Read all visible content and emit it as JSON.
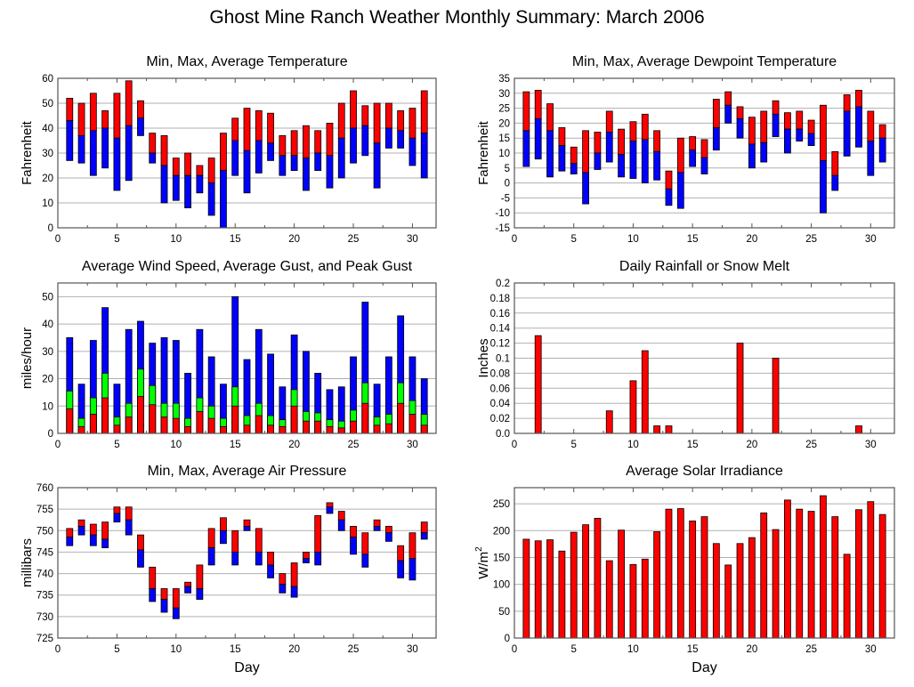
{
  "page_title": "Ghost Mine Ranch Weather Monthly Summary: March 2006",
  "colors": {
    "red": "#ff0000",
    "blue": "#0000ff",
    "green": "#00ff00",
    "grid": "#b0b0b0",
    "frame": "#555555"
  },
  "chart_data": [
    {
      "id": "temperature",
      "type": "bar",
      "subtype": "floating-range",
      "title": "Min, Max, Average Temperature",
      "xlabel": "",
      "ylabel": "Fahrenheit",
      "xlim": [
        0,
        32
      ],
      "ylim": [
        0,
        60
      ],
      "xticks": [
        0,
        5,
        10,
        15,
        20,
        25,
        30
      ],
      "yticks": [
        0,
        10,
        20,
        30,
        40,
        50,
        60
      ],
      "grid": true,
      "x": [
        1,
        2,
        3,
        4,
        5,
        6,
        7,
        8,
        9,
        10,
        11,
        12,
        13,
        14,
        15,
        16,
        17,
        18,
        19,
        20,
        21,
        22,
        23,
        24,
        25,
        26,
        27,
        28,
        29,
        30,
        31
      ],
      "series": [
        {
          "name": "Max",
          "color": "#ff0000",
          "values": [
            52,
            50,
            54,
            47,
            54,
            59,
            51,
            38,
            37,
            28,
            30,
            25,
            28,
            38,
            44,
            48,
            47,
            46,
            37,
            39,
            41,
            39,
            42,
            50,
            55,
            49,
            50,
            50,
            47,
            48,
            55
          ]
        },
        {
          "name": "Average",
          "values": [
            43,
            37,
            39,
            40,
            36,
            41,
            44,
            30,
            25,
            21,
            21,
            21,
            18,
            23,
            35,
            31,
            35,
            34,
            29,
            29,
            28,
            30,
            29,
            36,
            40,
            41,
            34,
            40,
            39,
            36,
            38
          ]
        },
        {
          "name": "Min",
          "color": "#0000ff",
          "values": [
            27,
            26,
            21,
            24,
            15,
            19,
            37,
            26,
            10,
            11,
            8,
            14,
            5,
            0,
            21,
            14,
            22,
            27,
            21,
            23,
            15,
            23,
            16,
            20,
            26,
            29,
            16,
            32,
            32,
            25,
            20
          ]
        }
      ]
    },
    {
      "id": "dewpoint",
      "type": "bar",
      "subtype": "floating-range",
      "title": "Min, Max, Average Dewpoint Temperature",
      "xlabel": "",
      "ylabel": "Fahrenheit",
      "xlim": [
        0,
        32
      ],
      "ylim": [
        -15,
        35
      ],
      "xticks": [
        0,
        5,
        10,
        15,
        20,
        25,
        30
      ],
      "yticks": [
        -15,
        -10,
        -5,
        0,
        5,
        10,
        15,
        20,
        25,
        30,
        35
      ],
      "grid": true,
      "x": [
        1,
        2,
        3,
        4,
        5,
        6,
        7,
        8,
        9,
        10,
        11,
        12,
        13,
        14,
        15,
        16,
        17,
        18,
        19,
        20,
        21,
        22,
        23,
        24,
        25,
        26,
        27,
        28,
        29,
        30,
        31
      ],
      "series": [
        {
          "name": "Max",
          "color": "#ff0000",
          "values": [
            30.5,
            31,
            26.5,
            18.5,
            12,
            17.5,
            17,
            24,
            18,
            20.5,
            23,
            17.5,
            4,
            15,
            15.5,
            14.5,
            28,
            30.5,
            25.5,
            22,
            24,
            27.5,
            23.5,
            24,
            21,
            26,
            10.5,
            29.5,
            31,
            24,
            19.5
          ]
        },
        {
          "name": "Average",
          "values": [
            17.5,
            21.5,
            17.5,
            12.5,
            6.5,
            3.5,
            10,
            17,
            9.5,
            14,
            14.5,
            10.5,
            -2,
            3.5,
            11,
            8.5,
            18.5,
            26,
            21.5,
            13,
            13.5,
            23,
            18,
            18,
            16.5,
            7.5,
            2.5,
            24,
            25.5,
            14,
            15
          ]
        },
        {
          "name": "Min",
          "color": "#0000ff",
          "values": [
            5.5,
            8,
            2,
            4,
            3,
            -7,
            4.5,
            7,
            2,
            1.5,
            0,
            1,
            -7.5,
            -8.5,
            5.5,
            3,
            11,
            20,
            15,
            5,
            7,
            15.5,
            10,
            14,
            12.5,
            -10,
            -2.5,
            9,
            12,
            2.5,
            7
          ]
        }
      ]
    },
    {
      "id": "wind",
      "type": "bar",
      "subtype": "overlaid",
      "title": "Average Wind Speed, Average Gust, and Peak Gust",
      "xlabel": "",
      "ylabel": "miles/hour",
      "xlim": [
        0,
        32
      ],
      "ylim": [
        0,
        55
      ],
      "xticks": [
        0,
        5,
        10,
        15,
        20,
        25,
        30
      ],
      "yticks": [
        0,
        10,
        20,
        30,
        40,
        50
      ],
      "grid": true,
      "x": [
        1,
        2,
        3,
        4,
        5,
        6,
        7,
        8,
        9,
        10,
        11,
        12,
        13,
        14,
        15,
        16,
        17,
        18,
        19,
        20,
        21,
        22,
        23,
        24,
        25,
        26,
        27,
        28,
        29,
        30,
        31
      ],
      "series": [
        {
          "name": "Peak Gust",
          "color": "#0000ff",
          "values": [
            35,
            18,
            34,
            46,
            18,
            38,
            41,
            33,
            35,
            34,
            22,
            38,
            28,
            18,
            50,
            27,
            38,
            29,
            17,
            36,
            30,
            22,
            16,
            17,
            28,
            48,
            18,
            28,
            43,
            28,
            20
          ]
        },
        {
          "name": "Average Gust",
          "color": "#00ff00",
          "values": [
            15.5,
            5.5,
            13,
            22,
            6,
            11,
            23.5,
            17.5,
            11,
            11,
            5.5,
            13,
            10,
            5.5,
            17,
            6.5,
            11,
            6.5,
            5,
            16,
            8,
            7.5,
            5,
            4.5,
            8.5,
            18.5,
            6,
            7,
            18.5,
            12,
            7
          ]
        },
        {
          "name": "Average Wind Speed",
          "color": "#ff0000",
          "values": [
            9,
            2.5,
            7,
            13,
            3,
            6,
            13.5,
            10.5,
            6,
            5.5,
            2.5,
            8,
            5.5,
            2.5,
            10,
            3,
            6.5,
            3,
            2.5,
            10,
            4.5,
            4.5,
            2.5,
            2,
            4.5,
            11,
            3,
            3.5,
            11,
            7,
            3
          ]
        }
      ]
    },
    {
      "id": "rainfall",
      "type": "bar",
      "title": "Daily Rainfall or Snow Melt",
      "xlabel": "",
      "ylabel": "Inches",
      "xlim": [
        0,
        32
      ],
      "ylim": [
        0,
        0.2
      ],
      "xticks": [
        0,
        5,
        10,
        15,
        20,
        25,
        30
      ],
      "yticks": [
        "0.0",
        "0.02",
        "0.04",
        "0.06",
        "0.08",
        "0.1",
        "0.12",
        "0.14",
        "0.16",
        "0.18",
        "0.2"
      ],
      "grid": true,
      "x": [
        1,
        2,
        3,
        4,
        5,
        6,
        7,
        8,
        9,
        10,
        11,
        12,
        13,
        14,
        15,
        16,
        17,
        18,
        19,
        20,
        21,
        22,
        23,
        24,
        25,
        26,
        27,
        28,
        29,
        30,
        31
      ],
      "series": [
        {
          "name": "Rainfall",
          "color": "#ff0000",
          "values": [
            0,
            0.13,
            0,
            0,
            0,
            0,
            0,
            0.03,
            0,
            0.07,
            0.11,
            0.01,
            0.01,
            0,
            0,
            0,
            0,
            0,
            0.12,
            0,
            0,
            0.1,
            0,
            0,
            0,
            0,
            0,
            0,
            0.01,
            0,
            0
          ]
        }
      ]
    },
    {
      "id": "pressure",
      "type": "bar",
      "subtype": "floating-range",
      "title": "Min, Max, Average Air Pressure",
      "xlabel": "Day",
      "ylabel": "millibars",
      "xlim": [
        0,
        32
      ],
      "ylim": [
        725,
        760
      ],
      "xticks": [
        0,
        5,
        10,
        15,
        20,
        25,
        30
      ],
      "yticks": [
        725,
        730,
        735,
        740,
        745,
        750,
        755,
        760
      ],
      "grid": true,
      "x": [
        1,
        2,
        3,
        4,
        5,
        6,
        7,
        8,
        9,
        10,
        11,
        12,
        13,
        14,
        15,
        16,
        17,
        18,
        19,
        20,
        21,
        22,
        23,
        24,
        25,
        26,
        27,
        28,
        29,
        30,
        31
      ],
      "series": [
        {
          "name": "Max",
          "color": "#ff0000",
          "values": [
            750.5,
            752.5,
            751.5,
            752,
            755.5,
            755.5,
            749,
            741.5,
            736.5,
            736.5,
            738,
            742,
            750.5,
            753,
            750,
            752.5,
            750.5,
            745,
            740,
            742.5,
            745,
            753.5,
            756.5,
            754.5,
            751,
            749.5,
            752.5,
            751,
            746.5,
            749.5,
            752
          ]
        },
        {
          "name": "Average",
          "values": [
            748.5,
            751,
            749,
            748,
            754,
            752.5,
            745.5,
            736.5,
            734,
            732,
            737,
            736.5,
            746,
            750,
            745,
            751,
            745,
            742,
            737.5,
            737,
            743.5,
            745,
            755.5,
            752.5,
            748.5,
            744.5,
            751,
            749.5,
            743,
            743.5,
            749.5
          ]
        },
        {
          "name": "Min",
          "color": "#0000ff",
          "values": [
            746.5,
            749,
            746.5,
            746,
            752,
            749,
            741.5,
            733.5,
            731,
            729.5,
            735.5,
            734,
            742,
            747,
            742,
            750,
            742,
            739,
            735.5,
            734.5,
            742.5,
            742,
            754,
            750,
            744.5,
            741.5,
            750,
            747.5,
            739,
            738.5,
            748
          ]
        }
      ]
    },
    {
      "id": "solar",
      "type": "bar",
      "title": "Average Solar Irradiance",
      "xlabel": "Day",
      "ylabel": "W/m",
      "ylabel_superscript": "2",
      "xlim": [
        0,
        32
      ],
      "ylim": [
        0,
        280
      ],
      "xticks": [
        0,
        5,
        10,
        15,
        20,
        25,
        30
      ],
      "yticks": [
        0,
        50,
        100,
        150,
        200,
        250
      ],
      "grid": true,
      "x": [
        1,
        2,
        3,
        4,
        5,
        6,
        7,
        8,
        9,
        10,
        11,
        12,
        13,
        14,
        15,
        16,
        17,
        18,
        19,
        20,
        21,
        22,
        23,
        24,
        25,
        26,
        27,
        28,
        29,
        30,
        31
      ],
      "series": [
        {
          "name": "Solar Irradiance",
          "color": "#ff0000",
          "values": [
            184,
            181,
            183,
            162,
            197,
            211,
            223,
            144,
            201,
            137,
            147,
            198,
            240,
            241,
            218,
            226,
            176,
            136,
            176,
            187,
            233,
            202,
            257,
            240,
            236,
            265,
            226,
            156,
            239,
            254,
            230
          ]
        }
      ]
    }
  ]
}
